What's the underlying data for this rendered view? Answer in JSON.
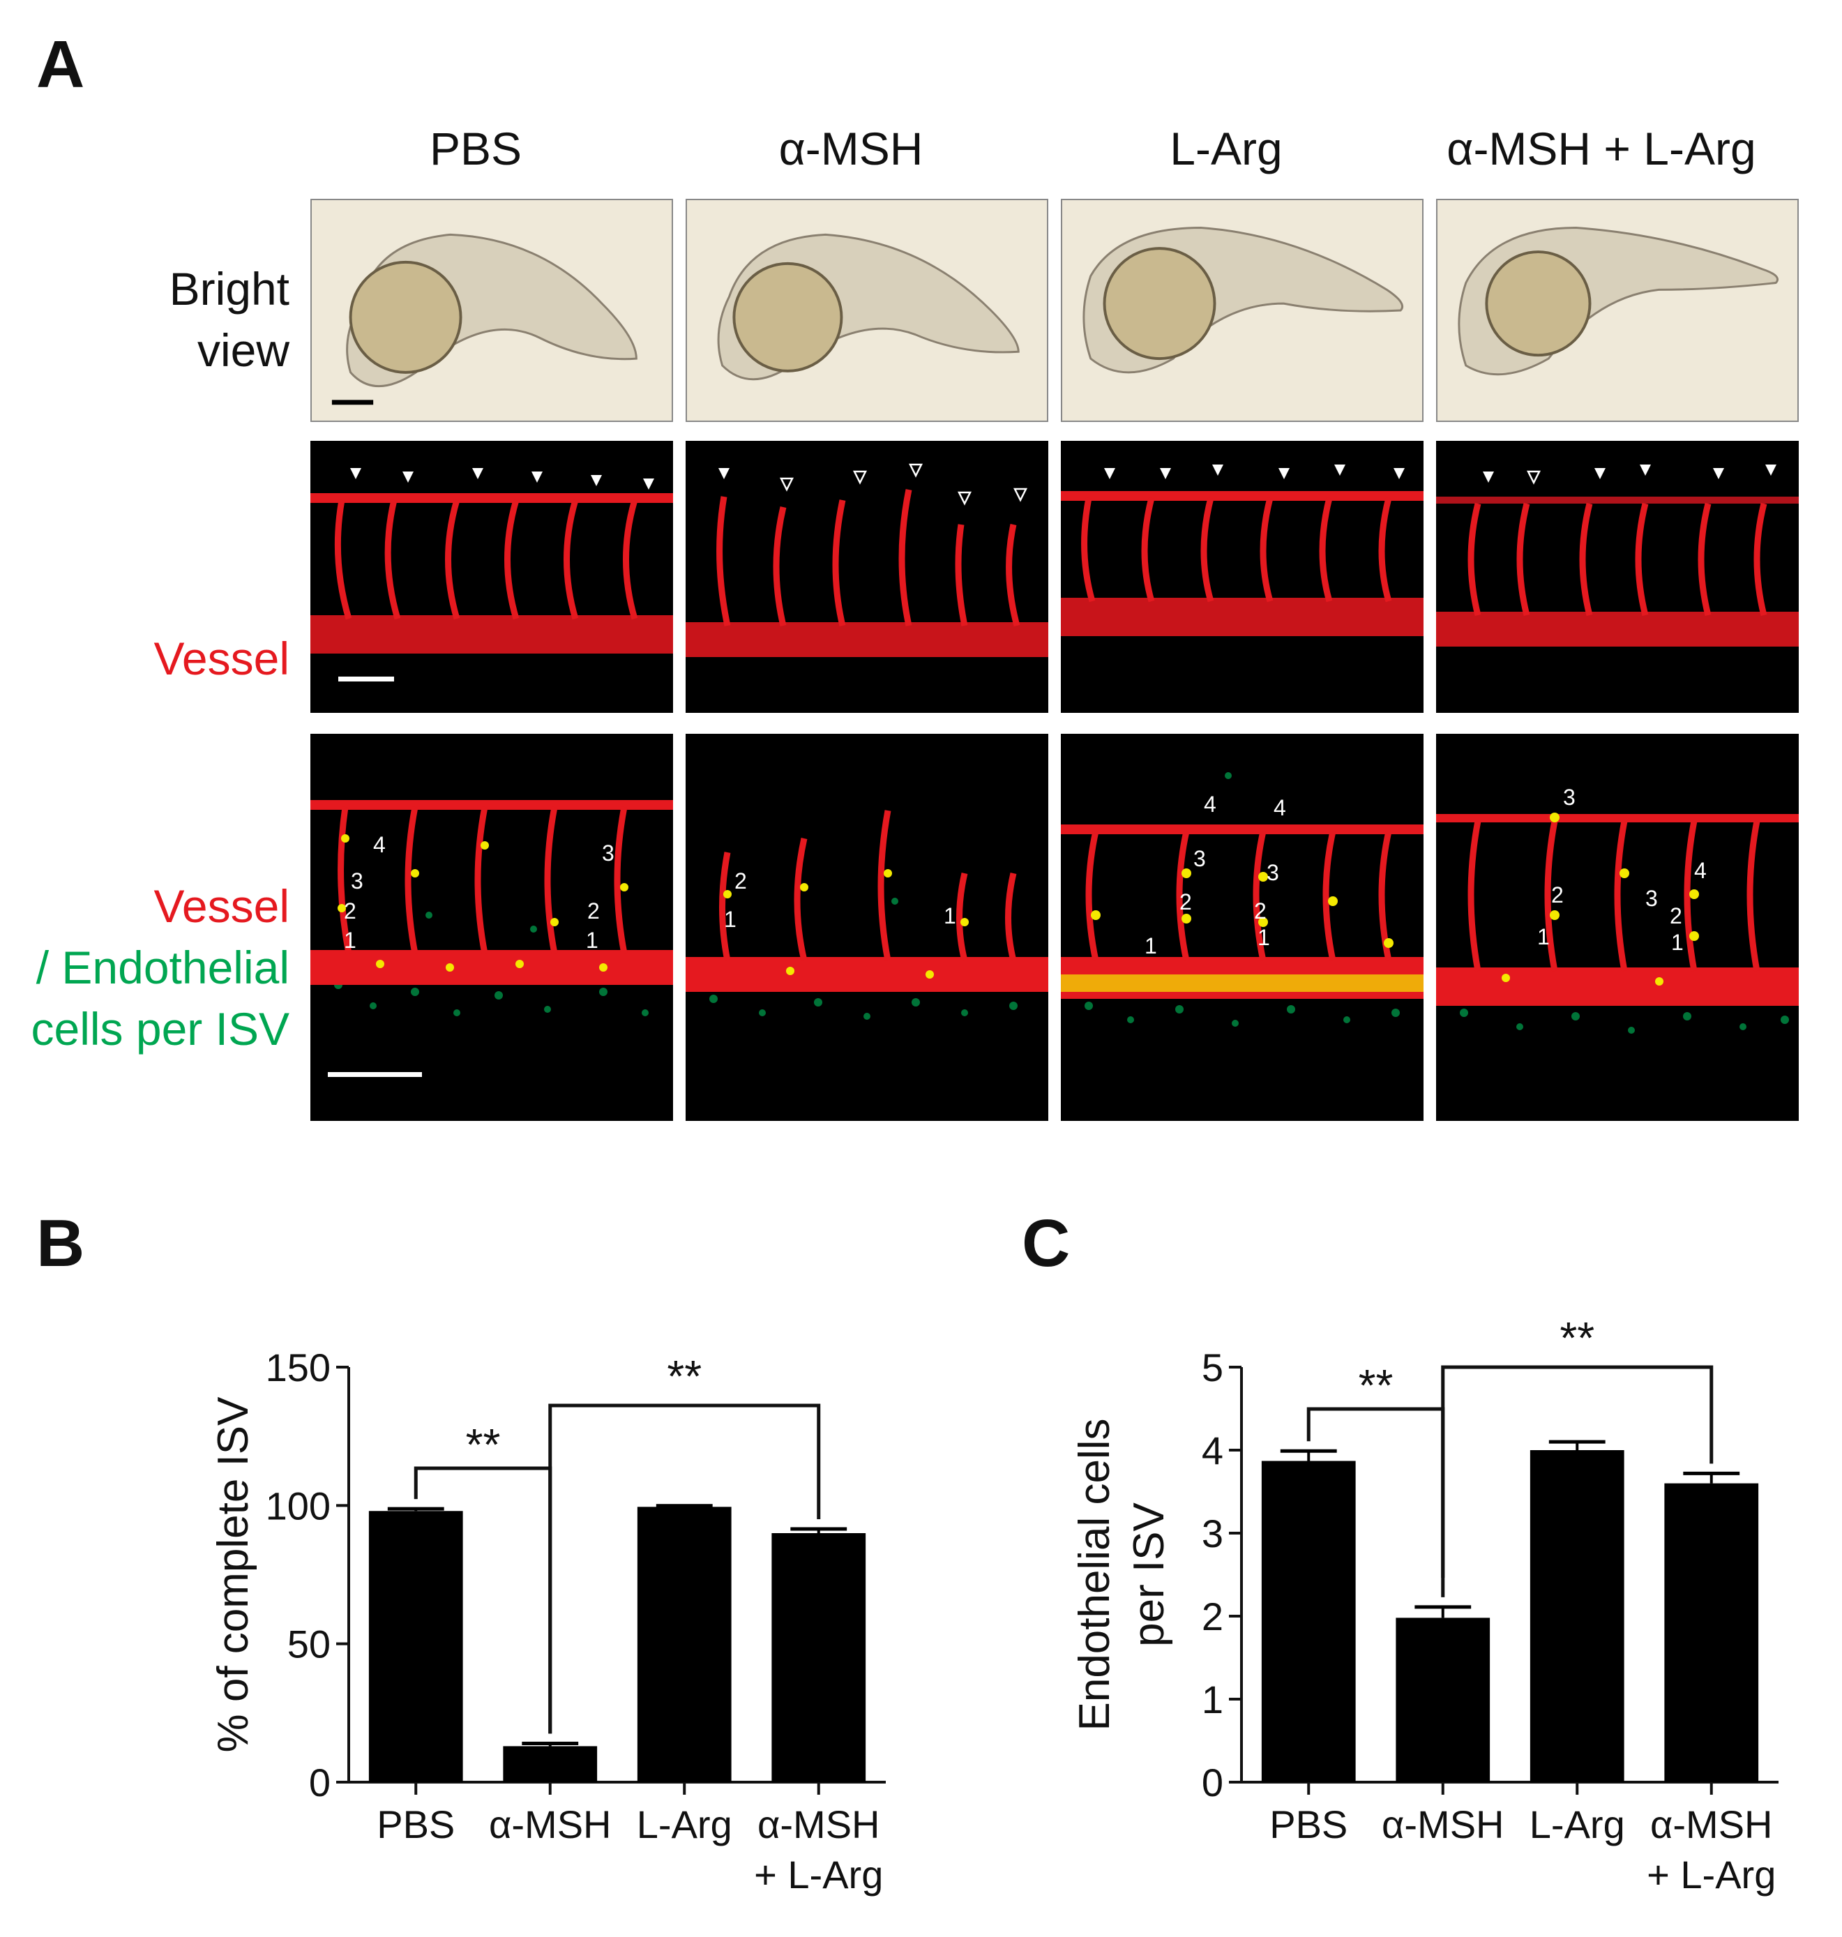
{
  "figure": {
    "panel_a_letter": "A",
    "panel_b_letter": "B",
    "panel_c_letter": "C",
    "groups": [
      "PBS",
      "α-MSH",
      "L-Arg",
      "α-MSH + L-Arg"
    ],
    "row_labels": {
      "bright": [
        "Bright",
        "view"
      ],
      "vessel": "Vessel",
      "merge_red": "Vessel",
      "merge_green": [
        "/ Endothelial",
        "cells per ISV"
      ]
    },
    "colors": {
      "vessel_red": "#e5191f",
      "endothelial_green": "#00a651",
      "bar": "#000000"
    },
    "isv_cell_numbers": [
      [
        "1",
        "2",
        "3",
        "4",
        "1",
        "2",
        "3"
      ],
      [
        "1",
        "2",
        "1"
      ],
      [
        "1",
        "2",
        "3",
        "4",
        "4",
        "3",
        "2",
        "1"
      ],
      [
        "3",
        "1",
        "2",
        "4",
        "3",
        "2",
        "1"
      ]
    ]
  },
  "chart_data": [
    {
      "type": "bar",
      "panel": "B",
      "categories": [
        "PBS",
        "α-MSH",
        "L-Arg",
        "α-MSH + L-Arg"
      ],
      "category_lines": [
        [
          "PBS"
        ],
        [
          "α-MSH"
        ],
        [
          "L-Arg"
        ],
        [
          "α-MSH",
          "+ L-Arg"
        ]
      ],
      "values": [
        98,
        13,
        99.5,
        90
      ],
      "errors": [
        0.8,
        1.0,
        0.4,
        1.5
      ],
      "ylabel": "% of complete ISV",
      "ylim": [
        0,
        150
      ],
      "yticks": [
        0,
        50,
        100,
        150
      ],
      "significance": [
        {
          "from": 0,
          "to": 1,
          "label": "**"
        },
        {
          "from": 1,
          "to": 3,
          "label": "**"
        }
      ]
    },
    {
      "type": "bar",
      "panel": "C",
      "categories": [
        "PBS",
        "α-MSH",
        "L-Arg",
        "α-MSH + L-Arg"
      ],
      "category_lines": [
        [
          "PBS"
        ],
        [
          "α-MSH"
        ],
        [
          "L-Arg"
        ],
        [
          "α-MSH",
          "+ L-Arg"
        ]
      ],
      "values": [
        3.87,
        1.98,
        4.0,
        3.6
      ],
      "errors": [
        0.12,
        0.13,
        0.1,
        0.12
      ],
      "ylabel_lines": [
        "Endothelial cells",
        "per ISV"
      ],
      "ylim": [
        0,
        5
      ],
      "yticks": [
        0,
        1,
        2,
        3,
        4,
        5
      ],
      "significance": [
        {
          "from": 0,
          "to": 1,
          "label": "**"
        },
        {
          "from": 1,
          "to": 3,
          "label": "**"
        }
      ]
    }
  ]
}
